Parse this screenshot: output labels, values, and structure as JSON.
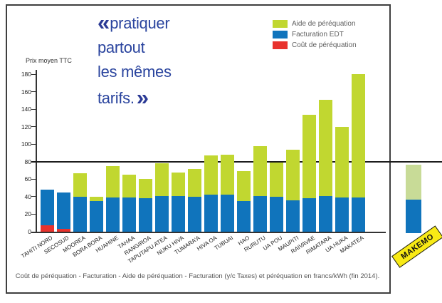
{
  "title": {
    "quote_open": "«",
    "quote_close": "»",
    "lines": [
      "pratiquer",
      "partout",
      "les mêmes",
      "tarifs."
    ]
  },
  "legend": {
    "items": [
      {
        "label": "Aide de péréquation",
        "color": "#c1d730"
      },
      {
        "label": "Facturation EDT",
        "color": "#1074bc"
      },
      {
        "label": "Coût de péréquation",
        "color": "#e8322d"
      }
    ]
  },
  "caption": "Coût de péréquation - Facturation - Aide de péréquation - Facturation (y/c Taxes) et péréquation en francs/kWh (fin 2014).",
  "chart_data": {
    "type": "bar",
    "stacked": true,
    "title": "pratiquer partout les mêmes tarifs.",
    "ylabel": "Prix moyen TTC",
    "unit": "francs/kWh",
    "ylim": [
      0,
      180
    ],
    "yticks": [
      0,
      20,
      40,
      60,
      80,
      100,
      120,
      140,
      160,
      180
    ],
    "reference_line": 80,
    "categories": [
      "TAHITI NORD",
      "SECOSUD",
      "MOOREA",
      "BORA BORA",
      "HUAHINE",
      "TAHAA",
      "RANGIROA",
      "TAPUTAPU ATEA",
      "NUKU HIVA",
      "TUMARA'A",
      "HIVA OA",
      "TUBUAI",
      "HAO",
      "RURUTU",
      "UA POU",
      "MAUPITI",
      "RAIVAVAE",
      "RIMATARA",
      "UA HUKA",
      "MAKATEA"
    ],
    "series": [
      {
        "name": "Coût de péréquation",
        "color": "#e8322d",
        "values": [
          7,
          3,
          0,
          0,
          0,
          0,
          0,
          0,
          0,
          0,
          0,
          0,
          0,
          0,
          0,
          0,
          0,
          0,
          0,
          0
        ]
      },
      {
        "name": "Facturation EDT",
        "color": "#1074bc",
        "values": [
          41,
          42,
          40,
          35,
          39,
          39,
          38,
          41,
          41,
          40,
          42,
          42,
          35,
          41,
          40,
          36,
          38,
          41,
          39,
          39
        ]
      },
      {
        "name": "Aide de péréquation",
        "color": "#c1d730",
        "values": [
          0,
          0,
          27,
          5,
          36,
          26,
          22,
          37,
          27,
          32,
          45,
          46,
          34,
          57,
          39,
          58,
          96,
          110,
          81,
          141
        ]
      }
    ],
    "totals": [
      48,
      45,
      67,
      40,
      75,
      65,
      60,
      78,
      68,
      72,
      87,
      88,
      69,
      98,
      79,
      94,
      134,
      151,
      120,
      180
    ],
    "extra_category": {
      "label": "MAKEMO",
      "label_bg": "#f8ea15",
      "segments": [
        {
          "name": "Facturation EDT",
          "color": "#1074bc",
          "value": 38
        },
        {
          "name": "Aide de péréquation",
          "color": "#c8db97",
          "value": 40
        }
      ],
      "total": 78
    }
  }
}
